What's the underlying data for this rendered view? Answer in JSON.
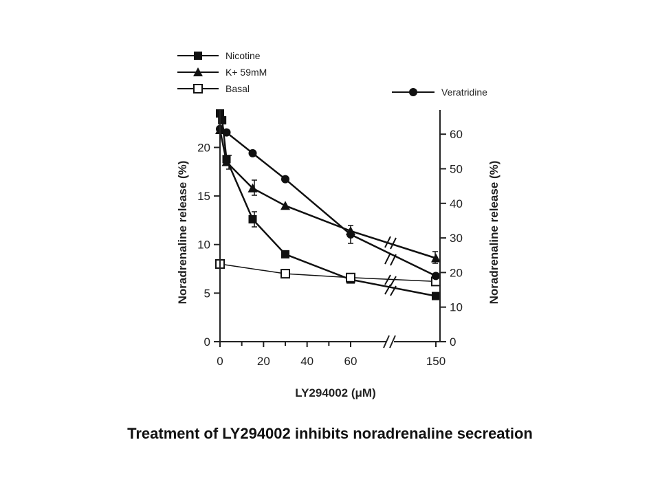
{
  "caption": "Treatment of LY294002 inhibits noradrenaline secreation",
  "chart_data": {
    "type": "line",
    "xlabel": "LY294002 (μM)",
    "ylabel_left": "Noradrenaline release (%)",
    "ylabel_right": "Noradrenaline release (%)",
    "x_ticks": [
      "0",
      "20",
      "40",
      "60",
      "150"
    ],
    "y_left_ticks": [
      0,
      5,
      10,
      15,
      20
    ],
    "y_right_ticks": [
      0,
      10,
      20,
      30,
      40,
      50,
      60
    ],
    "ylim_left": [
      0,
      23.5
    ],
    "ylim_right": [
      0,
      66
    ],
    "x_axis_break": "between 60 and 150",
    "legend_placement": "top-left",
    "series": [
      {
        "name": "Nicotine",
        "axis": "left",
        "marker": "filled-square",
        "x": [
          0,
          1,
          3,
          15,
          30,
          60,
          150
        ],
        "y": [
          23.5,
          22.8,
          18.8,
          12.6,
          9.0,
          6.4,
          4.7
        ]
      },
      {
        "name": "K+ 59mM",
        "axis": "left",
        "marker": "filled-triangle",
        "x": [
          0,
          3,
          15,
          30,
          60,
          150
        ],
        "y": [
          21.8,
          18.5,
          15.8,
          14.0,
          11.4,
          8.6
        ]
      },
      {
        "name": "Basal",
        "axis": "left",
        "marker": "open-square",
        "x": [
          0,
          30,
          60,
          150
        ],
        "y": [
          8.0,
          7.0,
          6.6,
          6.2
        ]
      },
      {
        "name": "Veratridine",
        "axis": "right",
        "marker": "filled-circle",
        "x": [
          0,
          3,
          15,
          30,
          60,
          150
        ],
        "y": [
          61.5,
          60.5,
          54.5,
          47.0,
          31.0,
          19.0
        ]
      }
    ]
  }
}
